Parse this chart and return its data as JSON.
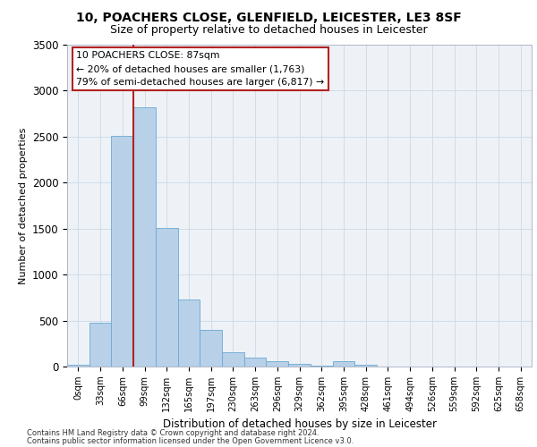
{
  "title": "10, POACHERS CLOSE, GLENFIELD, LEICESTER, LE3 8SF",
  "subtitle": "Size of property relative to detached houses in Leicester",
  "xlabel": "Distribution of detached houses by size in Leicester",
  "ylabel": "Number of detached properties",
  "categories": [
    "0sqm",
    "33sqm",
    "66sqm",
    "99sqm",
    "132sqm",
    "165sqm",
    "197sqm",
    "230sqm",
    "263sqm",
    "296sqm",
    "329sqm",
    "362sqm",
    "395sqm",
    "428sqm",
    "461sqm",
    "494sqm",
    "526sqm",
    "559sqm",
    "592sqm",
    "625sqm",
    "658sqm"
  ],
  "values": [
    20,
    475,
    2510,
    2820,
    1510,
    730,
    395,
    155,
    95,
    55,
    30,
    10,
    55,
    20,
    0,
    0,
    0,
    0,
    0,
    0,
    0
  ],
  "bar_color": "#b8d0e8",
  "bar_edge_color": "#6aaad4",
  "grid_color": "#d0dce8",
  "vline_x": 2.5,
  "vline_color": "#b22222",
  "annotation_text": "10 POACHERS CLOSE: 87sqm\n← 20% of detached houses are smaller (1,763)\n79% of semi-detached houses are larger (6,817) →",
  "annotation_box_color": "#ffffff",
  "annotation_box_edge": "#b22222",
  "ylim": [
    0,
    3500
  ],
  "yticks": [
    0,
    500,
    1000,
    1500,
    2000,
    2500,
    3000,
    3500
  ],
  "footer_line1": "Contains HM Land Registry data © Crown copyright and database right 2024.",
  "footer_line2": "Contains public sector information licensed under the Open Government Licence v3.0.",
  "background_color": "#eef2f7"
}
